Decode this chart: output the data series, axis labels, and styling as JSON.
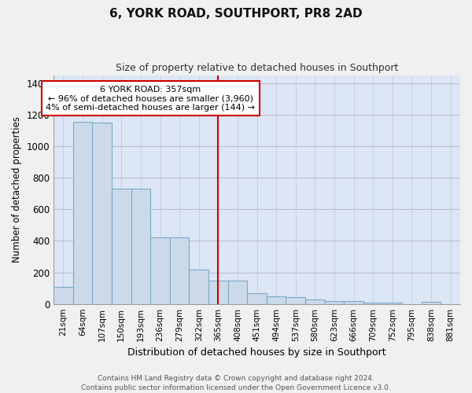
{
  "title": "6, YORK ROAD, SOUTHPORT, PR8 2AD",
  "subtitle": "Size of property relative to detached houses in Southport",
  "xlabel": "Distribution of detached houses by size in Southport",
  "ylabel": "Number of detached properties",
  "bar_color": "#ccd9e8",
  "bar_edge_color": "#7aaac8",
  "background_color": "#dce6f5",
  "grid_color": "#bbbbcc",
  "categories": [
    "21sqm",
    "64sqm",
    "107sqm",
    "150sqm",
    "193sqm",
    "236sqm",
    "279sqm",
    "322sqm",
    "365sqm",
    "408sqm",
    "451sqm",
    "494sqm",
    "537sqm",
    "580sqm",
    "623sqm",
    "666sqm",
    "709sqm",
    "752sqm",
    "795sqm",
    "838sqm",
    "881sqm"
  ],
  "values": [
    110,
    1155,
    1150,
    730,
    730,
    420,
    420,
    220,
    150,
    150,
    70,
    50,
    45,
    30,
    18,
    18,
    10,
    10,
    0,
    12,
    0
  ],
  "ylim": [
    0,
    1450
  ],
  "yticks": [
    0,
    200,
    400,
    600,
    800,
    1000,
    1200,
    1400
  ],
  "vline_index": 8,
  "vline_color": "#cc0000",
  "annotation_line1": "6 YORK ROAD: 357sqm",
  "annotation_line2": "← 96% of detached houses are smaller (3,960)",
  "annotation_line3": "4% of semi-detached houses are larger (144) →",
  "annotation_box_color": "#ffffff",
  "annotation_box_edge_color": "#cc0000",
  "footer_text": "Contains HM Land Registry data © Crown copyright and database right 2024.\nContains public sector information licensed under the Open Government Licence v3.0.",
  "figsize": [
    6.0,
    5.0
  ],
  "dpi": 100
}
